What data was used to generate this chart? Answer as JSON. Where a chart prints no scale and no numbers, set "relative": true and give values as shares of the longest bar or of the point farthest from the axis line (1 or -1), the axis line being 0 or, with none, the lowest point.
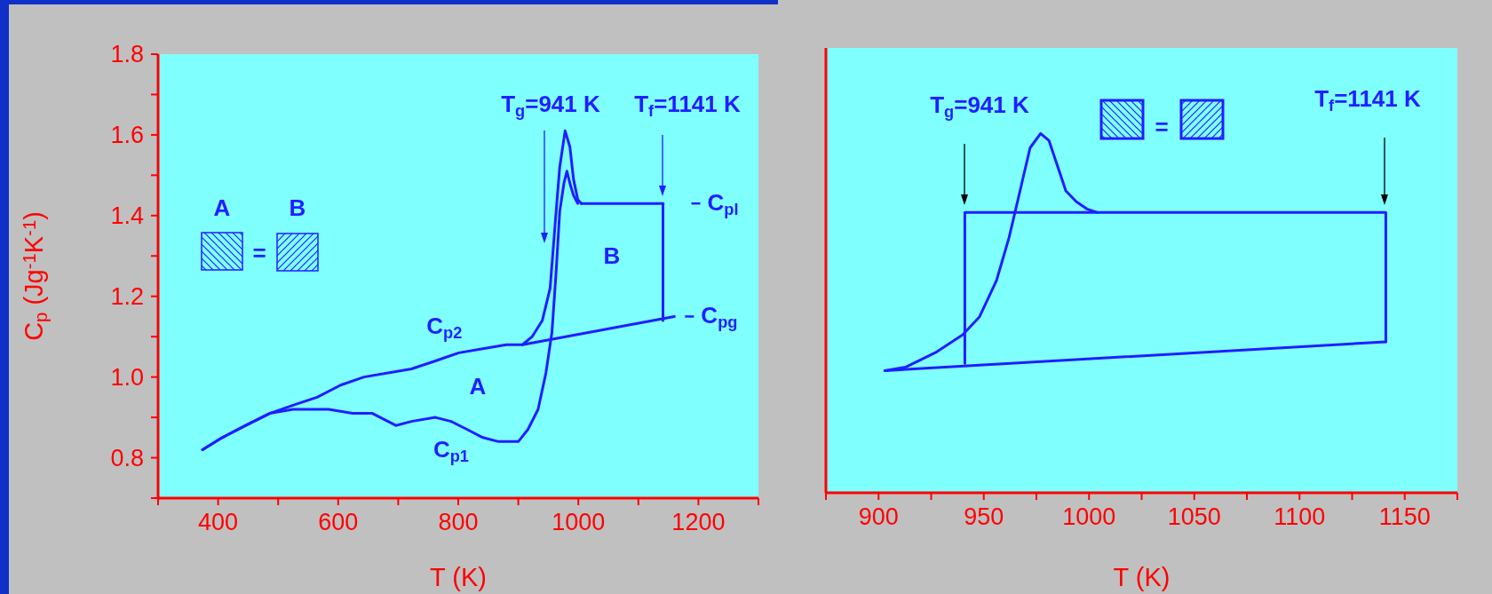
{
  "chart_data": [
    {
      "type": "line",
      "xlabel": "T (K)",
      "ylabel": "C$_{p}$ (Jg$^{-1}$K$^{-1}$)",
      "xlim": [
        300,
        1300
      ],
      "xticks": [
        {
          "value": 300,
          "label": null
        },
        400,
        {
          "value": 500,
          "label": null
        },
        600,
        {
          "value": 700,
          "label": null
        },
        800,
        {
          "value": 900,
          "label": null
        },
        1000,
        {
          "value": 1100,
          "label": null
        },
        1200,
        {
          "value": 1300,
          "label": null
        }
      ],
      "ylim": [
        0.7,
        1.8
      ],
      "yticks": [
        {
          "value": 0.7,
          "label": null
        },
        0.8,
        {
          "value": 0.9,
          "label": null
        },
        {
          "value": 1.0,
          "label": "1.0"
        },
        {
          "value": 1.1,
          "label": null
        },
        1.2,
        {
          "value": 1.3,
          "label": null
        },
        1.4,
        {
          "value": 1.5,
          "label": null
        },
        1.6,
        {
          "value": 1.7,
          "label": null
        },
        1.8
      ],
      "series": [
        {
          "name": "C$_{p1}$",
          "color": "#1f1fff",
          "x": [
            374,
            407,
            446,
            486,
            525,
            551,
            584,
            624,
            657,
            683,
            696,
            722,
            762,
            788,
            815,
            841,
            867,
            900,
            916,
            933,
            946,
            956,
            963,
            969,
            976,
            981,
            986,
            992,
            999
          ],
          "values": [
            0.82,
            0.85,
            0.88,
            0.91,
            0.92,
            0.92,
            0.92,
            0.91,
            0.91,
            0.89,
            0.88,
            0.89,
            0.9,
            0.89,
            0.87,
            0.85,
            0.84,
            0.84,
            0.87,
            0.92,
            1.01,
            1.11,
            1.26,
            1.41,
            1.48,
            1.51,
            1.48,
            1.45,
            1.43
          ]
        },
        {
          "name": "C$_{p2}$",
          "color": "#1f1fff",
          "x": [
            374,
            407,
            446,
            486,
            525,
            565,
            604,
            643,
            683,
            722,
            762,
            801,
            841,
            880,
            907,
            923,
            940,
            953,
            963,
            969,
            978,
            986,
            992,
            999,
            1005
          ],
          "values": [
            0.82,
            0.85,
            0.88,
            0.91,
            0.93,
            0.95,
            0.98,
            1.0,
            1.01,
            1.02,
            1.04,
            1.06,
            1.07,
            1.08,
            1.08,
            1.1,
            1.14,
            1.22,
            1.41,
            1.52,
            1.61,
            1.57,
            1.49,
            1.44,
            1.43
          ]
        },
        {
          "name": "C$_{pl}$",
          "color": "#1f1fff",
          "x": [
            1005,
            1141
          ],
          "values": [
            1.43,
            1.43
          ]
        },
        {
          "name": "C$_{pg}$",
          "color": "#1f1fff",
          "x": [
            907,
            1160
          ],
          "values": [
            1.08,
            1.15
          ]
        },
        {
          "color": "#1f1fff",
          "x": [
            1141,
            1141
          ],
          "values": [
            1.14,
            1.43
          ]
        }
      ],
      "legend": "right",
      "annotations": [
        "T$_{g}$=941 K",
        "T$_{f}$=1141 K",
        "A",
        "B",
        "A",
        "=",
        "B"
      ]
    },
    {
      "type": "line",
      "xlabel": "T (K)",
      "relative": true,
      "xlim": [
        875,
        1175
      ],
      "xticks": [
        {
          "value": 875,
          "label": null
        },
        900,
        {
          "value": 925,
          "label": null
        },
        950,
        {
          "value": 975,
          "label": null
        },
        1000,
        {
          "value": 1025,
          "label": null
        },
        1050,
        {
          "value": 1075,
          "label": null
        },
        1100,
        {
          "value": 1125,
          "label": null
        },
        1150,
        {
          "value": 1175,
          "label": null
        }
      ],
      "series": [
        {
          "color": "#1f1fff",
          "x": [
            903,
            913,
            927,
            940,
            948,
            956,
            962,
            968,
            972,
            977,
            981,
            985,
            989,
            994,
            999,
            1004
          ],
          "values": [
            0.34,
            0.35,
            0.39,
            0.44,
            0.49,
            0.59,
            0.71,
            0.86,
            0.96,
            1,
            0.98,
            0.91,
            0.84,
            0.81,
            0.79,
            0.78
          ]
        },
        {
          "color": "#1f1fff",
          "x": [
            903,
            1141
          ],
          "values": [
            0.34,
            0.42
          ]
        },
        {
          "color": "#1f1fff",
          "x": [
            941,
            941,
            1141,
            1141
          ],
          "values": [
            0.36,
            0.78,
            0.78,
            0.42
          ]
        }
      ],
      "annotations": [
        "T$_{g}$=941 K",
        "T$_{f}$=1141 K",
        "="
      ]
    }
  ]
}
